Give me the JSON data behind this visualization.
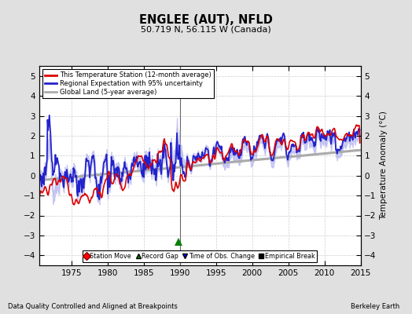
{
  "title": "ENGLEE (AUT), NFLD",
  "subtitle": "50.719 N, 56.115 W (Canada)",
  "xlabel_bottom": "Data Quality Controlled and Aligned at Breakpoints",
  "xlabel_right": "Berkeley Earth",
  "ylabel": "Temperature Anomaly (°C)",
  "xlim": [
    1970.5,
    2015.0
  ],
  "ylim": [
    -4.5,
    5.5
  ],
  "yticks": [
    -4,
    -3,
    -2,
    -1,
    0,
    1,
    2,
    3,
    4,
    5
  ],
  "xticks": [
    1975,
    1980,
    1985,
    1990,
    1995,
    2000,
    2005,
    2010,
    2015
  ],
  "background_color": "#e0e0e0",
  "plot_bg_color": "#ffffff",
  "station_color": "#dd0000",
  "regional_color": "#2222cc",
  "regional_fill_color": "#aaaaee",
  "global_color": "#aaaaaa",
  "vline_color": "#666666",
  "vline_x": 1990.0,
  "legend_items": [
    "This Temperature Station (12-month average)",
    "Regional Expectation with 95% uncertainty",
    "Global Land (5-year average)"
  ],
  "marker_record_gap_x": 1989.8,
  "marker_record_gap_y": -3.3,
  "seed": 12345
}
